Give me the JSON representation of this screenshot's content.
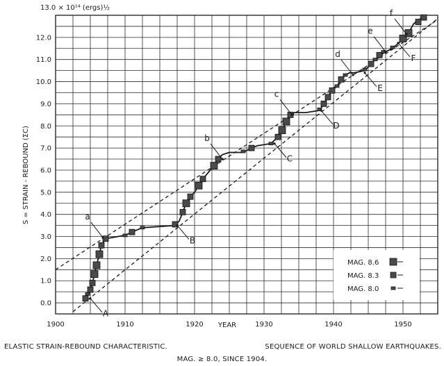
{
  "chart_data": {
    "type": "line",
    "y_axis_label": "S = STRAIN - REBOUND (ΣC)",
    "y_unit_label": "13.0 × 10¹⁴ (ergs)½",
    "x_axis_label": "YEAR",
    "xlim": [
      1900,
      1955
    ],
    "ylim": [
      -0.5,
      13.0
    ],
    "grid": true,
    "x_ticks": [
      1900,
      1910,
      1920,
      1930,
      1940,
      1950
    ],
    "y_ticks": [
      0.0,
      1.0,
      2.0,
      3.0,
      4.0,
      5.0,
      6.0,
      7.0,
      8.0,
      9.0,
      10.0,
      11.0,
      12.0
    ],
    "y_tick_labels": [
      "0.0",
      "1.0",
      "2.0",
      "3.0",
      "4.0",
      "5.0",
      "6.0",
      "7.0",
      "8.0",
      "9.0",
      "10.0",
      "11.0",
      "12.0"
    ],
    "x_tick_labels": [
      "1900",
      "1910",
      "1920",
      "1930",
      "1940",
      "1950"
    ],
    "cumulative_curve": {
      "x": [
        1904.3,
        1904.6,
        1905.0,
        1905.3,
        1905.6,
        1905.9,
        1906.3,
        1906.6,
        1907.2,
        1909.0,
        1910.0,
        1911.0,
        1912.5,
        1915.0,
        1917.2,
        1917.8,
        1918.3,
        1918.8,
        1919.4,
        1920.0,
        1920.6,
        1921.2,
        1922.0,
        1922.8,
        1923.4,
        1924.0,
        1925.0,
        1927.0,
        1928.2,
        1929.0,
        1931.0,
        1932.0,
        1932.6,
        1933.2,
        1933.8,
        1934.4,
        1936.0,
        1938.0,
        1938.6,
        1939.2,
        1939.8,
        1940.5,
        1941.1,
        1941.7,
        1942.3,
        1943.0,
        1944.5,
        1945.4,
        1946.0,
        1946.6,
        1947.2,
        1947.8,
        1948.5,
        1949.2,
        1950.0,
        1950.8,
        1951.5,
        1952.2,
        1953.0
      ],
      "y": [
        0.2,
        0.4,
        0.6,
        0.9,
        1.3,
        1.7,
        2.2,
        2.6,
        2.9,
        3.0,
        3.05,
        3.2,
        3.4,
        3.45,
        3.5,
        3.7,
        4.1,
        4.5,
        4.8,
        5.0,
        5.3,
        5.6,
        5.9,
        6.2,
        6.5,
        6.7,
        6.8,
        6.8,
        7.0,
        7.1,
        7.2,
        7.5,
        7.8,
        8.2,
        8.5,
        8.6,
        8.6,
        8.7,
        9.0,
        9.3,
        9.6,
        9.8,
        10.1,
        10.3,
        10.4,
        10.4,
        10.5,
        10.8,
        11.0,
        11.1,
        11.3,
        11.4,
        11.5,
        11.7,
        11.9,
        12.2,
        12.6,
        12.8,
        12.9
      ]
    },
    "events": [
      {
        "x": 1904.3,
        "y": 0.2,
        "mag": 8.3
      },
      {
        "x": 1904.6,
        "y": 0.4,
        "mag": 8.0
      },
      {
        "x": 1905.0,
        "y": 0.6,
        "mag": 8.3
      },
      {
        "x": 1905.3,
        "y": 0.9,
        "mag": 8.3
      },
      {
        "x": 1905.6,
        "y": 1.3,
        "mag": 8.6
      },
      {
        "x": 1905.9,
        "y": 1.7,
        "mag": 8.6
      },
      {
        "x": 1906.3,
        "y": 2.2,
        "mag": 8.6
      },
      {
        "x": 1906.6,
        "y": 2.6,
        "mag": 8.3
      },
      {
        "x": 1907.2,
        "y": 2.9,
        "mag": 8.3
      },
      {
        "x": 1910.0,
        "y": 3.05,
        "mag": 8.0
      },
      {
        "x": 1911.0,
        "y": 3.2,
        "mag": 8.3
      },
      {
        "x": 1912.5,
        "y": 3.4,
        "mag": 8.0
      },
      {
        "x": 1917.2,
        "y": 3.55,
        "mag": 8.3
      },
      {
        "x": 1918.3,
        "y": 4.1,
        "mag": 8.3
      },
      {
        "x": 1918.8,
        "y": 4.5,
        "mag": 8.6
      },
      {
        "x": 1919.4,
        "y": 4.8,
        "mag": 8.3
      },
      {
        "x": 1920.6,
        "y": 5.3,
        "mag": 8.6
      },
      {
        "x": 1921.2,
        "y": 5.6,
        "mag": 8.3
      },
      {
        "x": 1922.8,
        "y": 6.2,
        "mag": 8.6
      },
      {
        "x": 1923.4,
        "y": 6.5,
        "mag": 8.3
      },
      {
        "x": 1927.0,
        "y": 6.85,
        "mag": 8.0
      },
      {
        "x": 1928.2,
        "y": 7.0,
        "mag": 8.3
      },
      {
        "x": 1931.0,
        "y": 7.2,
        "mag": 8.0
      },
      {
        "x": 1932.0,
        "y": 7.5,
        "mag": 8.3
      },
      {
        "x": 1932.6,
        "y": 7.8,
        "mag": 8.6
      },
      {
        "x": 1933.2,
        "y": 8.2,
        "mag": 8.6
      },
      {
        "x": 1933.8,
        "y": 8.5,
        "mag": 8.3
      },
      {
        "x": 1938.0,
        "y": 8.75,
        "mag": 8.0
      },
      {
        "x": 1938.6,
        "y": 9.0,
        "mag": 8.3
      },
      {
        "x": 1939.2,
        "y": 9.3,
        "mag": 8.3
      },
      {
        "x": 1939.8,
        "y": 9.6,
        "mag": 8.3
      },
      {
        "x": 1940.5,
        "y": 9.8,
        "mag": 8.0
      },
      {
        "x": 1941.1,
        "y": 10.1,
        "mag": 8.3
      },
      {
        "x": 1941.7,
        "y": 10.3,
        "mag": 8.0
      },
      {
        "x": 1944.5,
        "y": 10.55,
        "mag": 8.0
      },
      {
        "x": 1945.4,
        "y": 10.8,
        "mag": 8.3
      },
      {
        "x": 1946.0,
        "y": 11.0,
        "mag": 8.0
      },
      {
        "x": 1946.6,
        "y": 11.2,
        "mag": 8.3
      },
      {
        "x": 1947.2,
        "y": 11.35,
        "mag": 8.0
      },
      {
        "x": 1948.5,
        "y": 11.55,
        "mag": 8.0
      },
      {
        "x": 1950.0,
        "y": 11.95,
        "mag": 8.6
      },
      {
        "x": 1950.8,
        "y": 12.2,
        "mag": 8.6
      },
      {
        "x": 1952.2,
        "y": 12.7,
        "mag": 8.3
      },
      {
        "x": 1953.0,
        "y": 12.9,
        "mag": 8.3
      }
    ],
    "envelope_lines": [
      {
        "name": "upper",
        "x": [
          1900,
          1955
        ],
        "y": [
          1.5,
          12.8
        ]
      },
      {
        "name": "lower",
        "x": [
          1902.5,
          1955
        ],
        "y": [
          -0.4,
          12.85
        ]
      }
    ],
    "annotations": [
      {
        "label": "a",
        "x": 1906.8,
        "y": 2.95,
        "side": "upper"
      },
      {
        "label": "b",
        "x": 1924.0,
        "y": 6.5,
        "side": "upper"
      },
      {
        "label": "c",
        "x": 1934.0,
        "y": 8.5,
        "side": "upper"
      },
      {
        "label": "d",
        "x": 1942.8,
        "y": 10.3,
        "side": "upper"
      },
      {
        "label": "e",
        "x": 1947.5,
        "y": 11.35,
        "side": "upper"
      },
      {
        "label": "f",
        "x": 1950.5,
        "y": 12.15,
        "side": "upper"
      },
      {
        "label": "A",
        "x": 1905.0,
        "y": 0.2,
        "side": "lower"
      },
      {
        "label": "B",
        "x": 1917.5,
        "y": 3.5,
        "side": "lower"
      },
      {
        "label": "C",
        "x": 1931.5,
        "y": 7.2,
        "side": "lower"
      },
      {
        "label": "D",
        "x": 1938.2,
        "y": 8.7,
        "side": "lower"
      },
      {
        "label": "E",
        "x": 1944.5,
        "y": 10.4,
        "side": "lower"
      },
      {
        "label": "F",
        "x": 1949.3,
        "y": 11.75,
        "side": "lower"
      }
    ],
    "legend": {
      "placement": "bottom-right",
      "entries": [
        {
          "label": "MAG. 8.6",
          "mag": 8.6
        },
        {
          "label": "MAG. 8.3",
          "mag": 8.3
        },
        {
          "label": "MAG. 8.0",
          "mag": 8.0
        }
      ]
    }
  },
  "caption": {
    "left": "ELASTIC STRAIN-REBOUND CHARACTERISTIC.",
    "right": "SEQUENCE OF WORLD SHALLOW EARTHQUAKES.",
    "bottom": "MAG. ≥ 8.0, SINCE 1904."
  },
  "colors": {
    "ink": "#1a1a1a",
    "grid": "#2a2a2a",
    "marker_fill": "#4a4a4a"
  }
}
